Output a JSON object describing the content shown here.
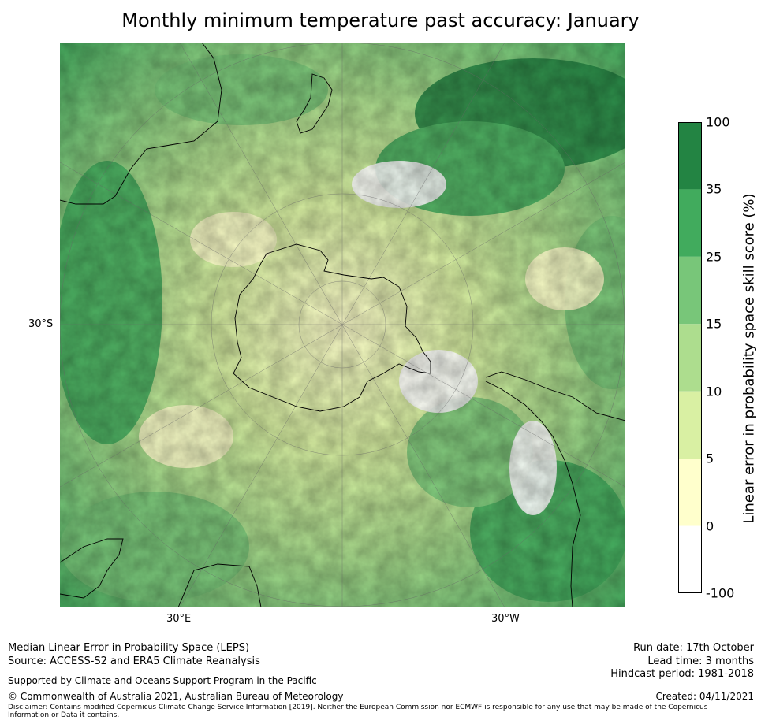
{
  "title": "Monthly minimum temperature past accuracy: January",
  "map": {
    "projection": "south-polar stereographic",
    "lat_labels": [
      "30°S"
    ],
    "lon_labels": [
      "30°E",
      "30°W"
    ]
  },
  "colorbar": {
    "title": "Linear error in probability space skill score (%)",
    "levels": [
      "100",
      "35",
      "25",
      "15",
      "10",
      "5",
      "0",
      "-100"
    ],
    "colors": [
      "#238443",
      "#41ab5d",
      "#78c679",
      "#addd8e",
      "#d9f0a3",
      "#ffffcc",
      "#ffffff"
    ]
  },
  "footer": {
    "line1": "Median Linear Error in Probability Space (LEPS)",
    "line2": "Source: ACCESS-S2 and ERA5 Climate Reanalysis",
    "support": "Supported by Climate and Oceans Support Program in the Pacific",
    "copyright": "© Commonwealth of Australia 2021, Australian Bureau of Meteorology",
    "disclaimer_1": "Disclaimer: Contains modified Copernicus Climate Change Service Information [2019]. Neither the European Commission nor ECMWF is responsible for any use that may be made of the Copernicus",
    "disclaimer_2": "Information or Data it contains.",
    "run_date": "Run date: 17th October",
    "lead_time": "Lead time: 3 months",
    "hindcast": "Hindcast period: 1981-2018",
    "created": "Created: 04/11/2021"
  }
}
